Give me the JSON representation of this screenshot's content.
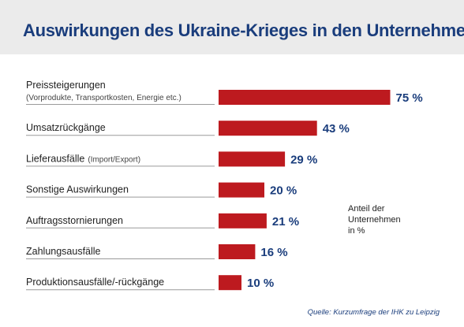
{
  "header": {
    "title": "Auswirkungen des Ukraine-Krieges in den Unternehmen"
  },
  "note": {
    "lines": [
      "Anteil der",
      "Unternehmen",
      "in %"
    ]
  },
  "source": "Quelle: Kurzumfrage der IHK zu Leipzig",
  "colors": {
    "bar": "#bd1a1f",
    "value_text": "#1a3d7c",
    "title_text": "#1a3d7c",
    "header_bg": "#ebebeb"
  },
  "chart_data": {
    "type": "bar",
    "orientation": "horizontal",
    "title": "Auswirkungen des Ukraine-Krieges in den Unternehmen",
    "xlabel": "",
    "ylabel": "",
    "unit": "%",
    "xlim": [
      0,
      100
    ],
    "grid": false,
    "categories": [
      {
        "label": "Preissteigerungen",
        "sublabel": "(Vorprodukte, Transportkosten, Energie etc.)",
        "sublabel_inline": false
      },
      {
        "label": "Umsatzrückgänge",
        "sublabel": "",
        "sublabel_inline": false
      },
      {
        "label": "Lieferausfälle",
        "sublabel": "(Import/Export)",
        "sublabel_inline": true
      },
      {
        "label": "Sonstige Auswirkungen",
        "sublabel": "",
        "sublabel_inline": false
      },
      {
        "label": "Auftragsstornierungen",
        "sublabel": "",
        "sublabel_inline": false
      },
      {
        "label": "Zahlungsausfälle",
        "sublabel": "",
        "sublabel_inline": false
      },
      {
        "label": "Produktionsausfälle/-rückgänge",
        "sublabel": "",
        "sublabel_inline": false
      }
    ],
    "values": [
      75,
      43,
      29,
      20,
      21,
      16,
      10
    ],
    "value_labels": [
      "75 %",
      "43 %",
      "29 %",
      "20 %",
      "21 %",
      "16 %",
      "10 %"
    ]
  }
}
